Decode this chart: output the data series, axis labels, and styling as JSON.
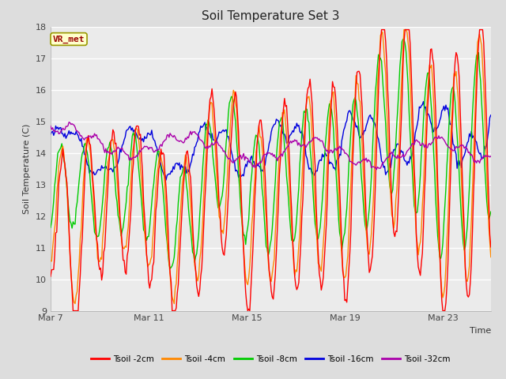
{
  "title": "Soil Temperature Set 3",
  "xlabel": "Time",
  "ylabel": "Soil Temperature (C)",
  "ylim": [
    9.0,
    18.0
  ],
  "yticks": [
    9.0,
    10.0,
    11.0,
    12.0,
    13.0,
    14.0,
    15.0,
    16.0,
    17.0,
    18.0
  ],
  "xtick_labels": [
    "Mar 7",
    "Mar 11",
    "Mar 15",
    "Mar 19",
    "Mar 23"
  ],
  "xtick_positions": [
    0,
    96,
    192,
    288,
    384
  ],
  "n_points": 432,
  "annotation_text": "VR_met",
  "annotation_bg": "#ffffcc",
  "annotation_border": "#999900",
  "annotation_color": "#990000",
  "bg_color": "#dddddd",
  "plot_bg_color": "#ebebeb",
  "series_colors": [
    "#ff0000",
    "#ff8800",
    "#00cc00",
    "#0000dd",
    "#aa00aa"
  ],
  "series_labels": [
    "Tsoil -2cm",
    "Tsoil -4cm",
    "Tsoil -8cm",
    "Tsoil -16cm",
    "Tsoil -32cm"
  ]
}
